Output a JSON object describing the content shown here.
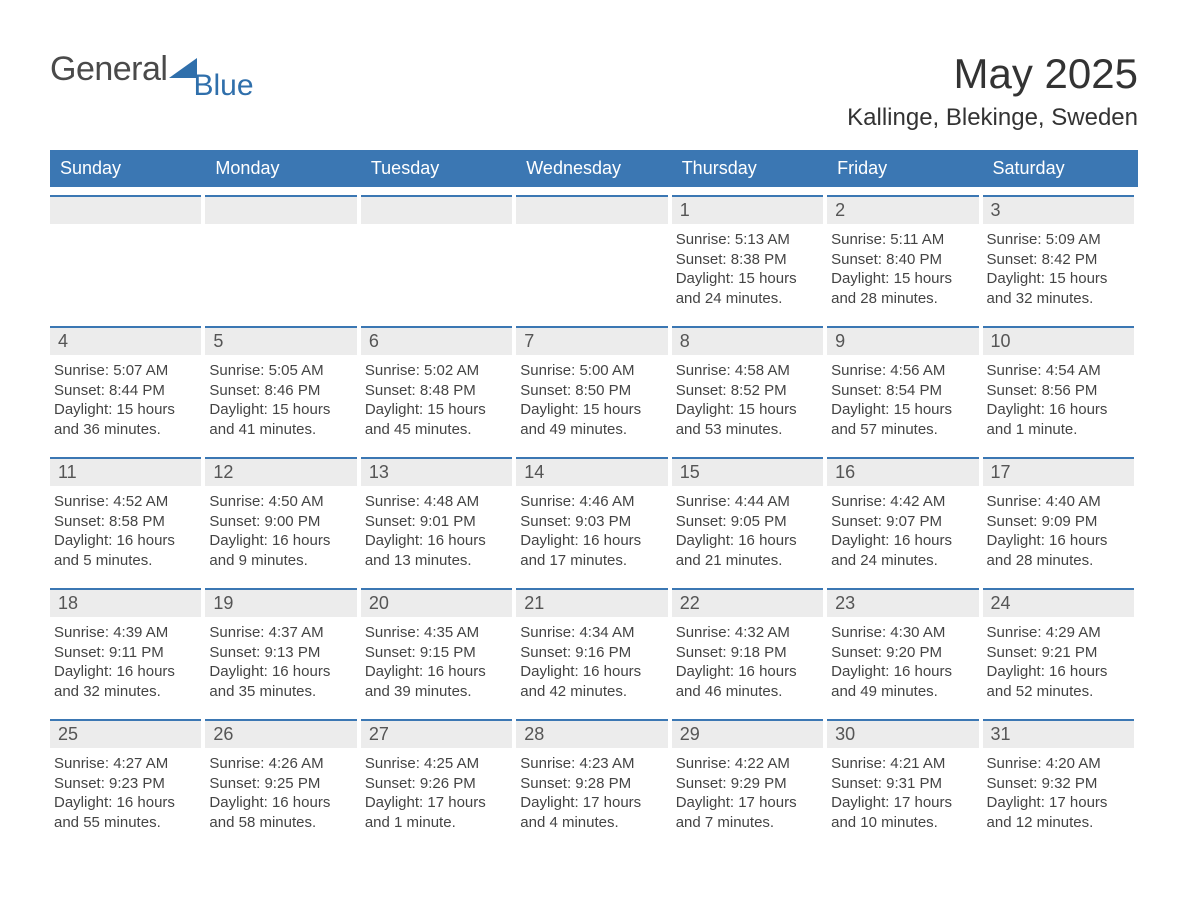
{
  "logo": {
    "word1": "General",
    "word2": "Blue",
    "tri_color": "#2f6fab"
  },
  "title": "May 2025",
  "subtitle": "Kallinge, Blekinge, Sweden",
  "colors": {
    "header_bg": "#3b77b3",
    "header_text": "#ffffff",
    "daynum_bg": "#ececec",
    "daynum_border": "#3b77b3",
    "body_text": "#444444",
    "title_text": "#333333"
  },
  "dow": [
    "Sunday",
    "Monday",
    "Tuesday",
    "Wednesday",
    "Thursday",
    "Friday",
    "Saturday"
  ],
  "weeks": [
    [
      null,
      null,
      null,
      null,
      {
        "n": "1",
        "sunrise": "Sunrise: 5:13 AM",
        "sunset": "Sunset: 8:38 PM",
        "dl1": "Daylight: 15 hours",
        "dl2": "and 24 minutes."
      },
      {
        "n": "2",
        "sunrise": "Sunrise: 5:11 AM",
        "sunset": "Sunset: 8:40 PM",
        "dl1": "Daylight: 15 hours",
        "dl2": "and 28 minutes."
      },
      {
        "n": "3",
        "sunrise": "Sunrise: 5:09 AM",
        "sunset": "Sunset: 8:42 PM",
        "dl1": "Daylight: 15 hours",
        "dl2": "and 32 minutes."
      }
    ],
    [
      {
        "n": "4",
        "sunrise": "Sunrise: 5:07 AM",
        "sunset": "Sunset: 8:44 PM",
        "dl1": "Daylight: 15 hours",
        "dl2": "and 36 minutes."
      },
      {
        "n": "5",
        "sunrise": "Sunrise: 5:05 AM",
        "sunset": "Sunset: 8:46 PM",
        "dl1": "Daylight: 15 hours",
        "dl2": "and 41 minutes."
      },
      {
        "n": "6",
        "sunrise": "Sunrise: 5:02 AM",
        "sunset": "Sunset: 8:48 PM",
        "dl1": "Daylight: 15 hours",
        "dl2": "and 45 minutes."
      },
      {
        "n": "7",
        "sunrise": "Sunrise: 5:00 AM",
        "sunset": "Sunset: 8:50 PM",
        "dl1": "Daylight: 15 hours",
        "dl2": "and 49 minutes."
      },
      {
        "n": "8",
        "sunrise": "Sunrise: 4:58 AM",
        "sunset": "Sunset: 8:52 PM",
        "dl1": "Daylight: 15 hours",
        "dl2": "and 53 minutes."
      },
      {
        "n": "9",
        "sunrise": "Sunrise: 4:56 AM",
        "sunset": "Sunset: 8:54 PM",
        "dl1": "Daylight: 15 hours",
        "dl2": "and 57 minutes."
      },
      {
        "n": "10",
        "sunrise": "Sunrise: 4:54 AM",
        "sunset": "Sunset: 8:56 PM",
        "dl1": "Daylight: 16 hours",
        "dl2": "and 1 minute."
      }
    ],
    [
      {
        "n": "11",
        "sunrise": "Sunrise: 4:52 AM",
        "sunset": "Sunset: 8:58 PM",
        "dl1": "Daylight: 16 hours",
        "dl2": "and 5 minutes."
      },
      {
        "n": "12",
        "sunrise": "Sunrise: 4:50 AM",
        "sunset": "Sunset: 9:00 PM",
        "dl1": "Daylight: 16 hours",
        "dl2": "and 9 minutes."
      },
      {
        "n": "13",
        "sunrise": "Sunrise: 4:48 AM",
        "sunset": "Sunset: 9:01 PM",
        "dl1": "Daylight: 16 hours",
        "dl2": "and 13 minutes."
      },
      {
        "n": "14",
        "sunrise": "Sunrise: 4:46 AM",
        "sunset": "Sunset: 9:03 PM",
        "dl1": "Daylight: 16 hours",
        "dl2": "and 17 minutes."
      },
      {
        "n": "15",
        "sunrise": "Sunrise: 4:44 AM",
        "sunset": "Sunset: 9:05 PM",
        "dl1": "Daylight: 16 hours",
        "dl2": "and 21 minutes."
      },
      {
        "n": "16",
        "sunrise": "Sunrise: 4:42 AM",
        "sunset": "Sunset: 9:07 PM",
        "dl1": "Daylight: 16 hours",
        "dl2": "and 24 minutes."
      },
      {
        "n": "17",
        "sunrise": "Sunrise: 4:40 AM",
        "sunset": "Sunset: 9:09 PM",
        "dl1": "Daylight: 16 hours",
        "dl2": "and 28 minutes."
      }
    ],
    [
      {
        "n": "18",
        "sunrise": "Sunrise: 4:39 AM",
        "sunset": "Sunset: 9:11 PM",
        "dl1": "Daylight: 16 hours",
        "dl2": "and 32 minutes."
      },
      {
        "n": "19",
        "sunrise": "Sunrise: 4:37 AM",
        "sunset": "Sunset: 9:13 PM",
        "dl1": "Daylight: 16 hours",
        "dl2": "and 35 minutes."
      },
      {
        "n": "20",
        "sunrise": "Sunrise: 4:35 AM",
        "sunset": "Sunset: 9:15 PM",
        "dl1": "Daylight: 16 hours",
        "dl2": "and 39 minutes."
      },
      {
        "n": "21",
        "sunrise": "Sunrise: 4:34 AM",
        "sunset": "Sunset: 9:16 PM",
        "dl1": "Daylight: 16 hours",
        "dl2": "and 42 minutes."
      },
      {
        "n": "22",
        "sunrise": "Sunrise: 4:32 AM",
        "sunset": "Sunset: 9:18 PM",
        "dl1": "Daylight: 16 hours",
        "dl2": "and 46 minutes."
      },
      {
        "n": "23",
        "sunrise": "Sunrise: 4:30 AM",
        "sunset": "Sunset: 9:20 PM",
        "dl1": "Daylight: 16 hours",
        "dl2": "and 49 minutes."
      },
      {
        "n": "24",
        "sunrise": "Sunrise: 4:29 AM",
        "sunset": "Sunset: 9:21 PM",
        "dl1": "Daylight: 16 hours",
        "dl2": "and 52 minutes."
      }
    ],
    [
      {
        "n": "25",
        "sunrise": "Sunrise: 4:27 AM",
        "sunset": "Sunset: 9:23 PM",
        "dl1": "Daylight: 16 hours",
        "dl2": "and 55 minutes."
      },
      {
        "n": "26",
        "sunrise": "Sunrise: 4:26 AM",
        "sunset": "Sunset: 9:25 PM",
        "dl1": "Daylight: 16 hours",
        "dl2": "and 58 minutes."
      },
      {
        "n": "27",
        "sunrise": "Sunrise: 4:25 AM",
        "sunset": "Sunset: 9:26 PM",
        "dl1": "Daylight: 17 hours",
        "dl2": "and 1 minute."
      },
      {
        "n": "28",
        "sunrise": "Sunrise: 4:23 AM",
        "sunset": "Sunset: 9:28 PM",
        "dl1": "Daylight: 17 hours",
        "dl2": "and 4 minutes."
      },
      {
        "n": "29",
        "sunrise": "Sunrise: 4:22 AM",
        "sunset": "Sunset: 9:29 PM",
        "dl1": "Daylight: 17 hours",
        "dl2": "and 7 minutes."
      },
      {
        "n": "30",
        "sunrise": "Sunrise: 4:21 AM",
        "sunset": "Sunset: 9:31 PM",
        "dl1": "Daylight: 17 hours",
        "dl2": "and 10 minutes."
      },
      {
        "n": "31",
        "sunrise": "Sunrise: 4:20 AM",
        "sunset": "Sunset: 9:32 PM",
        "dl1": "Daylight: 17 hours",
        "dl2": "and 12 minutes."
      }
    ]
  ]
}
